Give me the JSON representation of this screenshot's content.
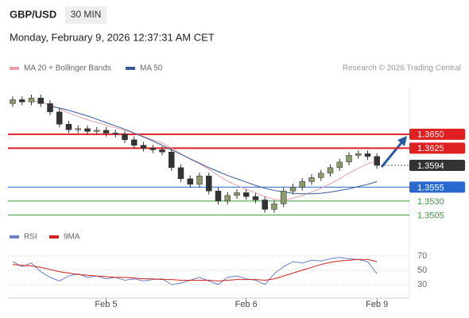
{
  "chart_data": {
    "type": "candlestick",
    "symbol": "GBP/USD",
    "timeframe": "30 MIN",
    "timestamp": "Monday, February 9, 2026 12:37:31 AM CET",
    "credit": "Research © 2026 Trading Central",
    "ylim": [
      1.3477,
      1.3734
    ],
    "xticks": [
      {
        "value": 10,
        "label": "Feb 5"
      },
      {
        "value": 25,
        "label": "Feb 6"
      },
      {
        "value": 39,
        "label": "Feb 9"
      }
    ],
    "up_color": "#8a9a6a",
    "down_color": "#333333",
    "open": [
      1.3705,
      1.3712,
      1.3708,
      1.3715,
      1.3705,
      1.369,
      1.3668,
      1.3658,
      1.366,
      1.3655,
      1.3657,
      1.3652,
      1.365,
      1.364,
      1.363,
      1.3625,
      1.3622,
      1.3618,
      1.359,
      1.357,
      1.356,
      1.3575,
      1.3548,
      1.353,
      1.354,
      1.3545,
      1.3538,
      1.3532,
      1.3515,
      1.3525,
      1.3548,
      1.3555,
      1.3565,
      1.3572,
      1.358,
      1.359,
      1.36,
      1.3612,
      1.3615,
      1.361
    ],
    "high": [
      1.3718,
      1.3718,
      1.3721,
      1.3721,
      1.3711,
      1.3696,
      1.3674,
      1.3666,
      1.3666,
      1.3663,
      1.3663,
      1.3658,
      1.3656,
      1.3646,
      1.3636,
      1.3631,
      1.3628,
      1.3624,
      1.3596,
      1.3576,
      1.3581,
      1.3581,
      1.3554,
      1.3546,
      1.3551,
      1.3551,
      1.3544,
      1.3538,
      1.3531,
      1.3554,
      1.3561,
      1.3571,
      1.3578,
      1.3586,
      1.3596,
      1.3606,
      1.3618,
      1.3621,
      1.3621,
      1.3616
    ],
    "low": [
      1.3699,
      1.3702,
      1.3702,
      1.3699,
      1.3684,
      1.3662,
      1.3652,
      1.3652,
      1.3649,
      1.3649,
      1.3646,
      1.3644,
      1.3634,
      1.3624,
      1.3619,
      1.3616,
      1.3612,
      1.3584,
      1.3564,
      1.3554,
      1.3554,
      1.3542,
      1.3524,
      1.3524,
      1.3534,
      1.3532,
      1.3526,
      1.3509,
      1.3509,
      1.3519,
      1.3542,
      1.3549,
      1.3559,
      1.3566,
      1.3574,
      1.3584,
      1.3594,
      1.3606,
      1.3604,
      1.3588
    ],
    "close": [
      1.3712,
      1.3708,
      1.3715,
      1.3705,
      1.369,
      1.3668,
      1.3658,
      1.366,
      1.3655,
      1.3657,
      1.3652,
      1.365,
      1.364,
      1.363,
      1.3625,
      1.3622,
      1.3618,
      1.359,
      1.357,
      1.356,
      1.3575,
      1.3548,
      1.353,
      1.354,
      1.3545,
      1.3538,
      1.3532,
      1.3515,
      1.3525,
      1.3548,
      1.3555,
      1.3565,
      1.3572,
      1.358,
      1.359,
      1.36,
      1.3612,
      1.3615,
      1.361,
      1.3594
    ],
    "series": [
      {
        "name": "MA 20 + Bollinger Bands",
        "color": "#e8a0a8",
        "values": [
          null,
          null,
          1.371,
          1.3708,
          1.3703,
          1.3696,
          1.3688,
          1.3682,
          1.3676,
          1.3671,
          1.3666,
          1.3662,
          1.3657,
          1.3652,
          1.3646,
          1.364,
          1.3634,
          1.3625,
          1.3615,
          1.3605,
          1.3597,
          1.3587,
          1.3576,
          1.3566,
          1.3558,
          1.3551,
          1.3545,
          1.3538,
          1.3533,
          1.3532,
          1.3535,
          1.354,
          1.3546,
          1.3553,
          1.3561,
          1.357,
          1.358,
          1.3589,
          1.3597,
          1.3602
        ]
      },
      {
        "name": "MA 50",
        "color": "#3a5a9a",
        "values": [
          null,
          null,
          null,
          null,
          1.37,
          1.3697,
          1.3693,
          1.3688,
          1.3683,
          1.3677,
          1.3671,
          1.3665,
          1.3659,
          1.3652,
          1.3645,
          1.3638,
          1.363,
          1.3622,
          1.3614,
          1.3606,
          1.3598,
          1.359,
          1.3583,
          1.3576,
          1.357,
          1.3564,
          1.3558,
          1.3553,
          1.3549,
          1.3546,
          1.3544,
          1.3543,
          1.3543,
          1.3544,
          1.3546,
          1.3549,
          1.3552,
          1.3556,
          1.356,
          1.3565
        ]
      }
    ],
    "levels": [
      {
        "value": 1.365,
        "label": "1.3650",
        "color": "#e02020",
        "boxed": true
      },
      {
        "value": 1.3625,
        "label": "1.3625",
        "color": "#e02020",
        "boxed": true
      },
      {
        "value": 1.3555,
        "label": "1.3555",
        "color": "#2a6ad0",
        "boxed": true
      },
      {
        "value": 1.353,
        "label": "1.3530",
        "color": "#3a9a3a",
        "boxed": false
      },
      {
        "value": 1.3505,
        "label": "1.3505",
        "color": "#3a9a3a",
        "boxed": false
      }
    ],
    "last_price": {
      "value": 1.3594,
      "label": "1.3594"
    },
    "rsi": {
      "ylim": [
        11,
        81
      ],
      "yticks": [
        70,
        50,
        30
      ],
      "series": [
        {
          "name": "RSI",
          "color": "#6a80c8",
          "values": [
            62,
            55,
            60,
            48,
            40,
            35,
            42,
            45,
            40,
            42,
            38,
            40,
            36,
            38,
            35,
            37,
            38,
            30,
            32,
            36,
            40,
            35,
            30,
            40,
            42,
            38,
            36,
            30,
            45,
            55,
            62,
            60,
            64,
            63,
            66,
            68,
            66,
            65,
            62,
            45
          ]
        },
        {
          "name": "9MA",
          "color": "#d02020",
          "values": [
            58,
            57,
            56,
            54,
            51,
            48,
            46,
            44,
            43,
            42,
            41,
            40,
            40,
            39,
            38,
            38,
            37,
            37,
            36,
            36,
            36,
            36,
            35,
            36,
            37,
            37,
            37,
            36,
            38,
            42,
            46,
            50,
            54,
            58,
            61,
            63,
            64,
            65,
            65,
            62
          ]
        }
      ]
    }
  }
}
